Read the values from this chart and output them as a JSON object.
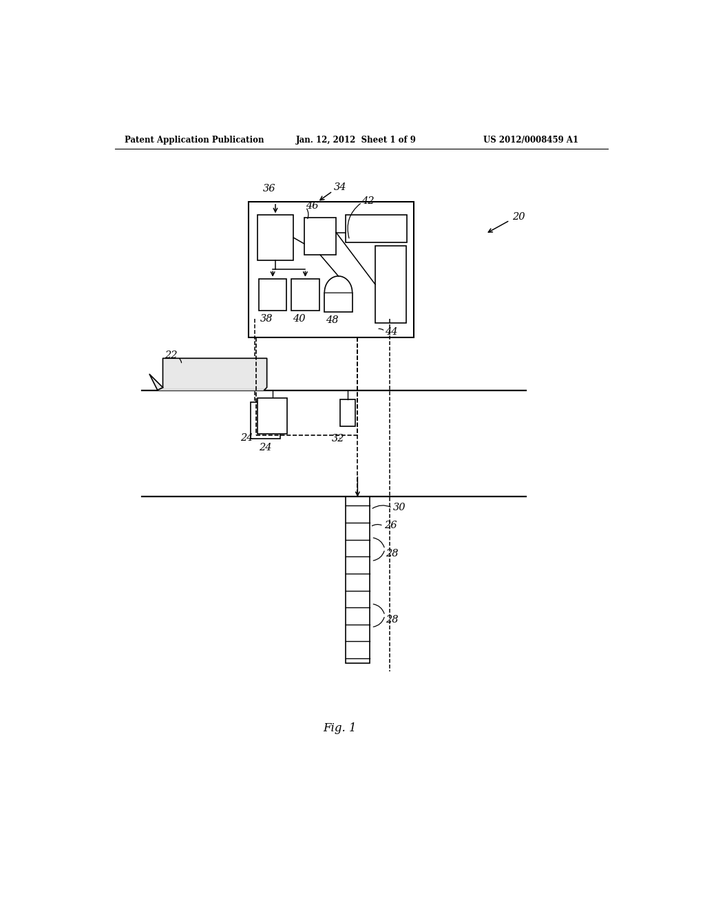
{
  "bg_color": "#ffffff",
  "header_left": "Patent Application Publication",
  "header_center": "Jan. 12, 2012  Sheet 1 of 9",
  "header_right": "US 2012/0008459 A1",
  "fig_label": "Fig. 1"
}
